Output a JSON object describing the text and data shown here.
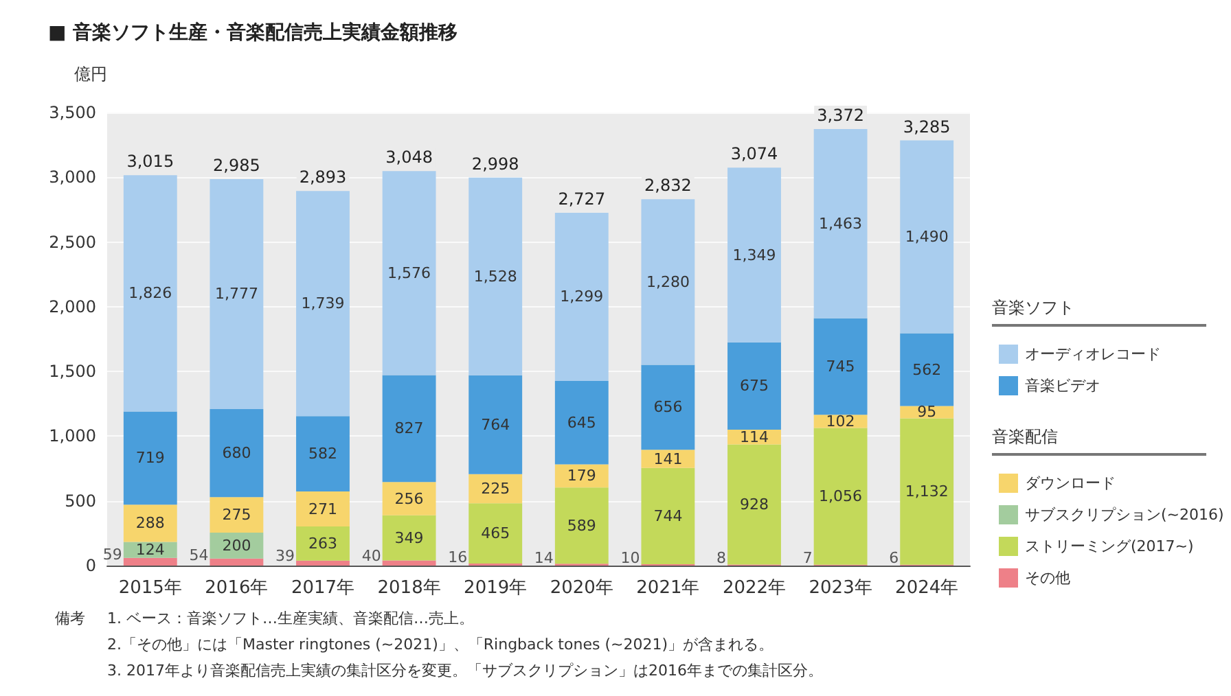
{
  "chart_data": {
    "type": "bar",
    "stacked": true,
    "title": "■ 音楽ソフト生産・音楽配信売上実績金額推移",
    "ylabel": "億円",
    "categories": [
      "2015年",
      "2016年",
      "2017年",
      "2018年",
      "2019年",
      "2020年",
      "2021年",
      "2022年",
      "2023年",
      "2024年"
    ],
    "series": [
      {
        "name": "その他",
        "color": "#ee8088",
        "values": [
          59,
          54,
          39,
          40,
          16,
          14,
          10,
          8,
          7,
          6
        ],
        "value_labels": [
          "59",
          "54",
          "39",
          "40",
          "16",
          "14",
          "10",
          "8",
          "7",
          "6"
        ]
      },
      {
        "name": "ストリーミング(2017~)",
        "color": "#c3d95a",
        "values": [
          null,
          null,
          263,
          349,
          465,
          589,
          744,
          928,
          1056,
          1132
        ],
        "value_labels": [
          null,
          null,
          "263",
          "349",
          "465",
          "589",
          "744",
          "928",
          "1,056",
          "1,132"
        ]
      },
      {
        "name": "サブスクリプション(~2016)",
        "color": "#a3cc9e",
        "values": [
          124,
          200,
          null,
          null,
          null,
          null,
          null,
          null,
          null,
          null
        ],
        "value_labels": [
          "124",
          "200",
          null,
          null,
          null,
          null,
          null,
          null,
          null,
          null
        ]
      },
      {
        "name": "ダウンロード",
        "color": "#f7d56c",
        "values": [
          288,
          275,
          271,
          256,
          225,
          179,
          141,
          114,
          102,
          95
        ],
        "value_labels": [
          "288",
          "275",
          "271",
          "256",
          "225",
          "179",
          "141",
          "114",
          "102",
          "95"
        ]
      },
      {
        "name": "音楽ビデオ",
        "color": "#4a9edb",
        "values": [
          719,
          680,
          582,
          827,
          764,
          645,
          656,
          675,
          745,
          562
        ],
        "value_labels": [
          "719",
          "680",
          "582",
          "827",
          "764",
          "645",
          "656",
          "675",
          "745",
          "562"
        ]
      },
      {
        "name": "オーディオレコード",
        "color": "#a9cdee",
        "values": [
          1826,
          1777,
          1739,
          1576,
          1528,
          1299,
          1280,
          1349,
          1463,
          1490
        ],
        "value_labels": [
          "1,826",
          "1,777",
          "1,739",
          "1,576",
          "1,528",
          "1,299",
          "1,280",
          "1,349",
          "1,463",
          "1,490"
        ]
      }
    ],
    "totals": [
      "3,015",
      "2,985",
      "2,893",
      "3,048",
      "2,998",
      "2,727",
      "2,832",
      "3,074",
      "3,372",
      "3,285"
    ],
    "ylim": [
      0,
      3500
    ],
    "yticks": [
      {
        "value": 0,
        "label": "0"
      },
      {
        "value": 500,
        "label": "500"
      },
      {
        "value": 1000,
        "label": "1,000"
      },
      {
        "value": 1500,
        "label": "1,500"
      },
      {
        "value": 2000,
        "label": "2,000"
      },
      {
        "value": 2500,
        "label": "2,500"
      },
      {
        "value": 3000,
        "label": "3,000"
      },
      {
        "value": 3500,
        "label": "3,500"
      }
    ],
    "grid": "y",
    "legend": "right",
    "legend_title": [
      "音楽ソフト",
      "音楽配信"
    ],
    "annotations": [
      "備考",
      "1. ベース：音楽ソフト…生産実績、音楽配信…売上。",
      "2.「その他」には「Master ringtones (~2021)」、「Ringback tones (~2021)」が含まれる。",
      "3. 2017年より音楽配信売上実績の集計区分を変更。「サブスクリプション」は2016年までの集計区分。"
    ]
  }
}
